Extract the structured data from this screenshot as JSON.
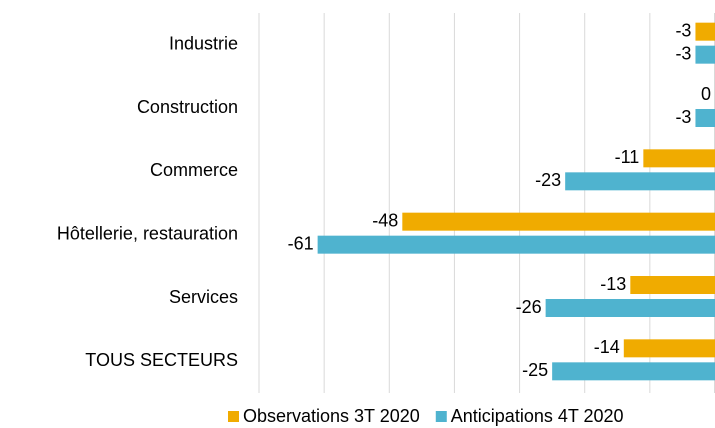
{
  "chart_data": {
    "type": "hbar",
    "categories": [
      "Industrie",
      "Construction",
      "Commerce",
      "Hôtellerie, restauration",
      "Services",
      "TOUS SECTEURS"
    ],
    "series": [
      {
        "name": "Observations 3T 2020",
        "color": "#f0ab00",
        "values": [
          -3,
          0,
          -11,
          -48,
          -13,
          -14
        ]
      },
      {
        "name": "Anticipations 4T 2020",
        "color": "#4fb3cf",
        "values": [
          -3,
          -3,
          -23,
          -61,
          -26,
          -25
        ]
      }
    ],
    "xlim": [
      -70,
      0
    ],
    "xticks": [
      -70,
      -60,
      -50,
      -40,
      -30,
      -20,
      -10,
      0
    ],
    "grid": true
  }
}
